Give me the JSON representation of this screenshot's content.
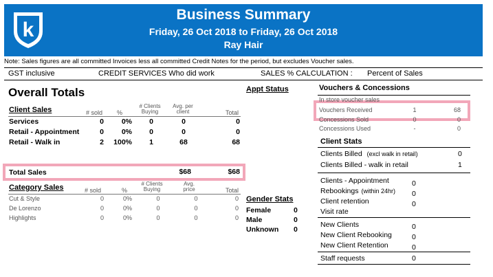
{
  "header": {
    "title": "Business Summary",
    "date_range": "Friday, 26 Oct 2018 to  Friday, 26 Oct 2018",
    "salon": "Ray Hair",
    "logo_letter": "k",
    "brand_color": "#0a73c5"
  },
  "note": "Note: Sales figures are all committed Invoices less all committed Credit Notes for the period, but excludes Voucher sales.",
  "settings": {
    "gst": "GST inclusive",
    "credit": "CREDIT SERVICES  Who did work",
    "calc_label": "SALES % CALCULATION :",
    "calc_value": "Percent of Sales"
  },
  "overall": {
    "title": "Overall Totals",
    "client_sales": {
      "title": "Client Sales",
      "headers": {
        "sold": "# sold",
        "pct": "%",
        "clients": "# Clients Buying",
        "avg": "Avg. per client",
        "total": "Total"
      },
      "rows": [
        {
          "label": "Services",
          "sold": "0",
          "pct": "0%",
          "clients": "0",
          "avg": "0",
          "total": "0"
        },
        {
          "label": "Retail - Appointment",
          "sold": "0",
          "pct": "0%",
          "clients": "0",
          "avg": "0",
          "total": "0"
        },
        {
          "label": "Retail - Walk in",
          "sold": "2",
          "pct": "100%",
          "clients": "1",
          "avg": "68",
          "total": "68"
        }
      ]
    },
    "total_sales": {
      "label": "Total Sales",
      "avg": "$68",
      "total": "$68"
    },
    "category_sales": {
      "title": "Category Sales",
      "headers": {
        "sold": "# sold",
        "pct": "%",
        "clients": "# Clients Buying",
        "avg": "Avg. price",
        "total": "Total"
      },
      "rows": [
        {
          "label": "Cut & Style",
          "sold": "0",
          "pct": "0%",
          "clients": "0",
          "avg": "0",
          "total": "0"
        },
        {
          "label": "De Lorenzo",
          "sold": "0",
          "pct": "0%",
          "clients": "0",
          "avg": "0",
          "total": "0"
        },
        {
          "label": "Highlights",
          "sold": "0",
          "pct": "0%",
          "clients": "0",
          "avg": "0",
          "total": "0"
        }
      ]
    }
  },
  "appt_status": {
    "title": "Appt Status"
  },
  "gender_stats": {
    "title": "Gender Stats",
    "rows": [
      {
        "label": "Female",
        "value": "0"
      },
      {
        "label": "Male",
        "value": "0"
      },
      {
        "label": "Unknown",
        "value": "0"
      }
    ]
  },
  "vouchers": {
    "title": "Vouchers & Concessions",
    "rows": [
      {
        "label": "In store voucher sales",
        "a": "",
        "b": ""
      },
      {
        "label": "Vouchers Received",
        "a": "1",
        "b": "68"
      },
      {
        "label": "Concessions Sold",
        "a": "0",
        "b": "0"
      },
      {
        "label": "Concessions Used",
        "a": "-",
        "b": "0"
      }
    ]
  },
  "client_stats": {
    "title": "Client Stats",
    "billed_label": "Clients Billed",
    "billed_note": "(excl walk in retail)",
    "billed_value": "0",
    "billed_walkin_label": "Clients Billed  - walk in retail",
    "billed_walkin_value": "1",
    "group1": [
      {
        "label": "Clients - Appointment",
        "note": "",
        "value": "0"
      },
      {
        "label": "Rebookings",
        "note": "(within 24hr)",
        "value": "0"
      },
      {
        "label": "Client retention",
        "note": "",
        "value": "0"
      },
      {
        "label": "Visit rate",
        "note": "",
        "value": ""
      }
    ],
    "group2": [
      {
        "label": "New Clients",
        "value": "0"
      },
      {
        "label": "New Client Rebooking",
        "value": "0"
      },
      {
        "label": "New Client Retention",
        "value": "0"
      }
    ],
    "staff_label": "Staff requests",
    "staff_value": "0"
  }
}
